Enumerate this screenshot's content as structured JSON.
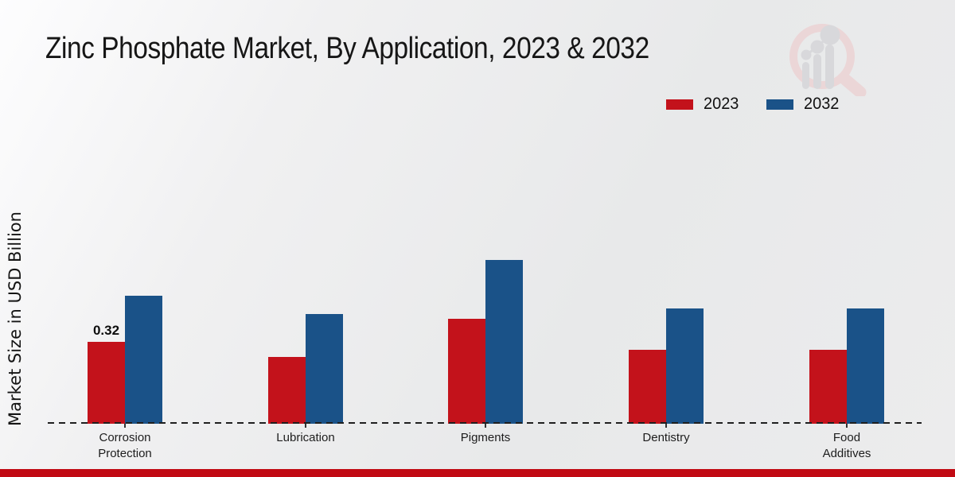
{
  "page": {
    "title": "Zinc Phosphate Market, By Application, 2023 & 2032",
    "footer_color": "#c10a13"
  },
  "icons": {
    "brand_watermark": "magnifier-bar-chart-logo-icon"
  },
  "legend": {
    "items": [
      {
        "label": "2023",
        "color": "#c3121b"
      },
      {
        "label": "2032",
        "color": "#1a5288"
      }
    ]
  },
  "chart_data": {
    "type": "bar",
    "title": "Zinc Phosphate Market, By Application, 2023 & 2032",
    "categories": [
      "Corrosion Protection",
      "Lubrication",
      "Pigments",
      "Dentistry",
      "Food Additives"
    ],
    "category_lines": [
      [
        "Corrosion",
        "Protection"
      ],
      [
        "Lubrication"
      ],
      [
        "Pigments"
      ],
      [
        "Dentistry"
      ],
      [
        "Food",
        "Additives"
      ]
    ],
    "series": [
      {
        "name": "2023",
        "color": "#c3121b",
        "values": [
          0.32,
          0.26,
          0.41,
          0.29,
          0.29
        ]
      },
      {
        "name": "2032",
        "color": "#1a5288",
        "values": [
          0.5,
          0.43,
          0.64,
          0.45,
          0.45
        ]
      }
    ],
    "xlabel": "",
    "ylabel": "Market Size in USD Billion",
    "ylim": [
      0,
      0.7
    ],
    "grid": false,
    "y_axis_ticks_visible": false,
    "legend_position": "top-right",
    "baseline_style": "dashed",
    "data_labels": [
      {
        "series": "2023",
        "category": "Corrosion Protection",
        "text": "0.32"
      }
    ]
  }
}
